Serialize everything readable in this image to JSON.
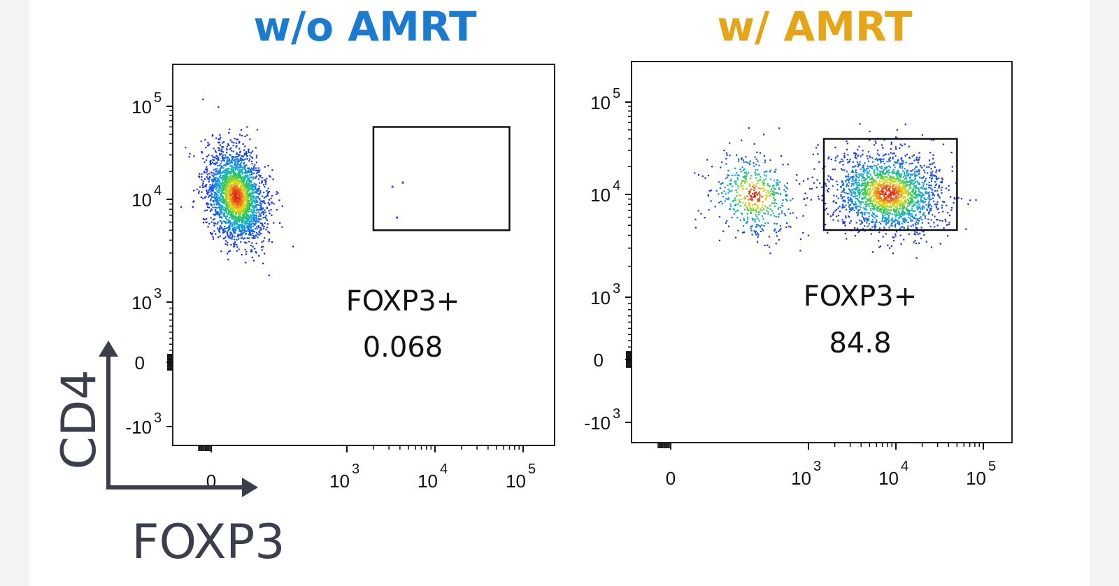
{
  "chart_data": [
    {
      "type": "scatter",
      "title": "w/o AMRT",
      "title_color": "#1a7bd0",
      "x_scale": "biexponential",
      "y_scale": "biexponential",
      "x_ticks": [
        "0",
        "10^3",
        "10^4",
        "10^5"
      ],
      "y_ticks": [
        "-10^3",
        "0",
        "10^3",
        "10^4",
        "10^5"
      ],
      "gate": {
        "label": "FOXP3+",
        "value": "0.068",
        "x_range": [
          2000,
          70000
        ],
        "y_range": [
          5000,
          60000
        ]
      },
      "populations": [
        {
          "center_foxp3": 180,
          "center_cd4": 11000,
          "fraction": 1.0
        }
      ]
    },
    {
      "type": "scatter",
      "title": "w/ AMRT",
      "title_color": "#e6a516",
      "x_scale": "biexponential",
      "y_scale": "biexponential",
      "x_ticks": [
        "0",
        "10^3",
        "10^4",
        "10^5"
      ],
      "y_ticks": [
        "-10^3",
        "0",
        "10^3",
        "10^4",
        "10^5"
      ],
      "gate": {
        "label": "FOXP3+",
        "value": "84.8",
        "x_range": [
          1500,
          50000
        ],
        "y_range": [
          4500,
          40000
        ]
      },
      "populations": [
        {
          "center_foxp3": 600,
          "center_cd4": 10000,
          "fraction": 0.2
        },
        {
          "center_foxp3": 8000,
          "center_cd4": 10500,
          "fraction": 0.8
        }
      ]
    }
  ],
  "axes_legend": {
    "y_label": "CD4",
    "x_label": "FOXP3"
  },
  "colors": {
    "axis": "#3a3f4b",
    "density_low": "#0b1fd6",
    "density_high": "#e01010"
  }
}
